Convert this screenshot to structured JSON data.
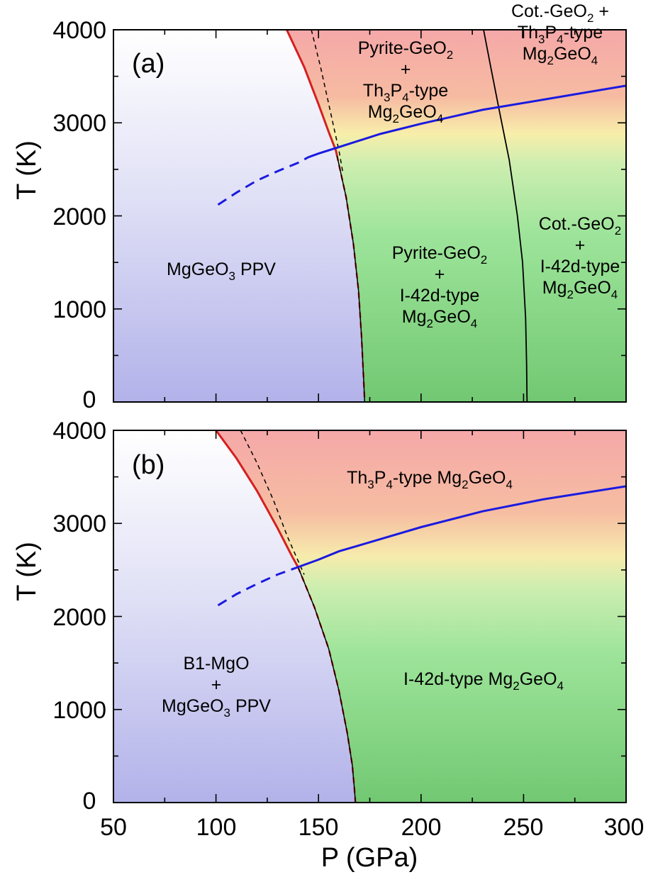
{
  "chart_data": [
    {
      "type": "line",
      "panel": "(a)",
      "xlabel": "P (GPa)",
      "ylabel": "T (K)",
      "xlim": [
        50,
        300
      ],
      "ylim": [
        0,
        4000
      ],
      "x_ticks": [
        "50",
        "100",
        "150",
        "200",
        "250",
        "300"
      ],
      "y_ticks": [
        "0",
        "1000",
        "2000",
        "3000",
        "4000"
      ],
      "series": [
        {
          "role": "ppv-boundary-red-solid",
          "color": "#d42020",
          "style": "solid",
          "x": [
            134.5,
            143,
            150,
            155,
            158.5,
            159
          ],
          "y": [
            4000,
            3600,
            3200,
            2900,
            2700,
            2650
          ]
        },
        {
          "role": "ppv-boundary-red-dashed",
          "color": "#d42020",
          "style": "dashed",
          "x": [
            159,
            163.5,
            167,
            169.5,
            171,
            172,
            172.5
          ],
          "y": [
            2650,
            2200,
            1700,
            1200,
            700,
            250,
            0
          ]
        },
        {
          "role": "ppv-boundary-black-solid",
          "color": "#000000",
          "style": "solid",
          "x": [
            159,
            163.5,
            167,
            169.5,
            171,
            172,
            172.5
          ],
          "y": [
            2650,
            2200,
            1700,
            1200,
            700,
            250,
            0
          ]
        },
        {
          "role": "ppv-boundary-black-dashed",
          "color": "#000000",
          "style": "dashed",
          "x": [
            146.5,
            151,
            155,
            158,
            160,
            162
          ],
          "y": [
            4000,
            3600,
            3200,
            2900,
            2700,
            2450
          ]
        },
        {
          "role": "geo2-boundary",
          "color": "#000000",
          "style": "solid",
          "x": [
            230.5,
            234,
            238,
            243,
            247,
            249.5,
            251,
            251.5,
            251.7
          ],
          "y": [
            4000,
            3600,
            3150,
            2600,
            2000,
            1500,
            900,
            400,
            0
          ]
        },
        {
          "role": "melting-solid",
          "color": "#1a1ae0",
          "style": "solid",
          "x": [
            145,
            150,
            160,
            180,
            200,
            230,
            260,
            300
          ],
          "y": [
            2630,
            2670,
            2740,
            2880,
            2990,
            3140,
            3250,
            3400
          ]
        },
        {
          "role": "melting-dashed",
          "color": "#1a1ae0",
          "style": "dashed",
          "x": [
            101,
            110,
            120,
            130,
            140,
            145
          ],
          "y": [
            2120,
            2250,
            2380,
            2480,
            2570,
            2630
          ]
        }
      ],
      "regions": [
        {
          "lines": [
            [
              "MgGeO",
              "3",
              " PPV"
            ]
          ]
        },
        {
          "lines": [
            [
              "Pyrite-GeO",
              "2"
            ],
            [
              "+"
            ],
            [
              "Th",
              "3",
              "P",
              "4",
              "-type"
            ],
            [
              "Mg",
              "2",
              "GeO",
              "4"
            ]
          ]
        },
        {
          "lines": [
            [
              "Cot.-GeO",
              "2",
              " +"
            ],
            [
              "Th",
              "3",
              "P",
              "4",
              "-type"
            ],
            [
              "Mg",
              "2",
              "GeO",
              "4"
            ]
          ]
        },
        {
          "lines": [
            [
              "Pyrite-GeO",
              "2"
            ],
            [
              "+"
            ],
            [
              "I-42d-type"
            ],
            [
              "Mg",
              "2",
              "GeO",
              "4"
            ]
          ]
        },
        {
          "lines": [
            [
              "Cot.-GeO",
              "2"
            ],
            [
              "+"
            ],
            [
              "I-42d-type"
            ],
            [
              "Mg",
              "2",
              "GeO",
              "4"
            ]
          ]
        }
      ]
    },
    {
      "type": "line",
      "panel": "(b)",
      "xlabel": "P (GPa)",
      "ylabel": "T (K)",
      "xlim": [
        50,
        300
      ],
      "ylim": [
        0,
        4000
      ],
      "x_ticks": [
        "50",
        "100",
        "150",
        "200",
        "250",
        "300"
      ],
      "y_ticks": [
        "0",
        "1000",
        "2000",
        "3000",
        "4000"
      ],
      "series": [
        {
          "role": "ppv-boundary-red-solid",
          "color": "#d42020",
          "style": "solid",
          "x": [
            100,
            110,
            120,
            130,
            137,
            140
          ],
          "y": [
            4000,
            3700,
            3350,
            2950,
            2650,
            2530
          ]
        },
        {
          "role": "ppv-boundary-red-dashed",
          "color": "#d42020",
          "style": "dashed",
          "x": [
            140,
            148,
            155,
            160,
            164,
            166.5,
            167.5,
            168
          ],
          "y": [
            2530,
            2100,
            1650,
            1200,
            750,
            400,
            150,
            0
          ]
        },
        {
          "role": "ppv-boundary-black-solid",
          "color": "#000000",
          "style": "solid",
          "x": [
            140,
            148,
            155,
            160,
            164,
            166.5,
            167.5,
            168
          ],
          "y": [
            2530,
            2100,
            1650,
            1200,
            750,
            400,
            150,
            0
          ]
        },
        {
          "role": "ppv-boundary-black-dashed",
          "color": "#000000",
          "style": "dashed",
          "x": [
            112,
            120,
            128,
            135,
            140,
            143
          ],
          "y": [
            4000,
            3650,
            3250,
            2850,
            2600,
            2450
          ]
        },
        {
          "role": "melting-solid",
          "color": "#1a1ae0",
          "style": "solid",
          "x": [
            140,
            150,
            160,
            180,
            200,
            230,
            260,
            300
          ],
          "y": [
            2530,
            2610,
            2700,
            2830,
            2960,
            3130,
            3260,
            3400
          ]
        },
        {
          "role": "melting-dashed",
          "color": "#1a1ae0",
          "style": "dashed",
          "x": [
            101,
            110,
            120,
            130,
            140
          ],
          "y": [
            2120,
            2240,
            2350,
            2450,
            2530
          ]
        }
      ],
      "regions": [
        {
          "lines": [
            [
              "Th",
              "3",
              "P",
              "4",
              "-type Mg",
              "2",
              "GeO",
              "4"
            ]
          ]
        },
        {
          "lines": [
            [
              "B1-MgO"
            ],
            [
              "+"
            ],
            [
              "MgGeO",
              "3",
              " PPV"
            ]
          ]
        },
        {
          "lines": [
            [
              "I-42d-type Mg",
              "2",
              "GeO",
              "4"
            ]
          ]
        }
      ]
    }
  ]
}
